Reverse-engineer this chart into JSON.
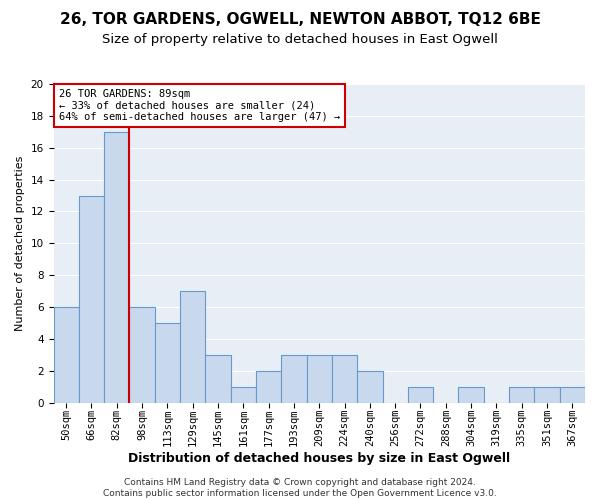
{
  "title": "26, TOR GARDENS, OGWELL, NEWTON ABBOT, TQ12 6BE",
  "subtitle": "Size of property relative to detached houses in East Ogwell",
  "xlabel": "Distribution of detached houses by size in East Ogwell",
  "ylabel": "Number of detached properties",
  "categories": [
    "50sqm",
    "66sqm",
    "82sqm",
    "98sqm",
    "113sqm",
    "129sqm",
    "145sqm",
    "161sqm",
    "177sqm",
    "193sqm",
    "209sqm",
    "224sqm",
    "240sqm",
    "256sqm",
    "272sqm",
    "288sqm",
    "304sqm",
    "319sqm",
    "335sqm",
    "351sqm",
    "367sqm"
  ],
  "values": [
    6,
    13,
    17,
    6,
    5,
    7,
    3,
    1,
    2,
    3,
    3,
    3,
    2,
    0,
    1,
    0,
    1,
    0,
    1,
    1,
    1
  ],
  "bar_color": "#c9d9ed",
  "bar_edge_color": "#6699cc",
  "bar_linewidth": 0.8,
  "red_line_x": 2.5,
  "annotation_line1": "26 TOR GARDENS: 89sqm",
  "annotation_line2": "← 33% of detached houses are smaller (24)",
  "annotation_line3": "64% of semi-detached houses are larger (47) →",
  "annotation_box_color": "#ffffff",
  "annotation_box_edge_color": "#cc0000",
  "ylim": [
    0,
    20
  ],
  "yticks": [
    0,
    2,
    4,
    6,
    8,
    10,
    12,
    14,
    16,
    18,
    20
  ],
  "background_color": "#e8eef5",
  "footer_line1": "Contains HM Land Registry data © Crown copyright and database right 2024.",
  "footer_line2": "Contains public sector information licensed under the Open Government Licence v3.0.",
  "title_fontsize": 11,
  "subtitle_fontsize": 9.5,
  "xlabel_fontsize": 9,
  "ylabel_fontsize": 8,
  "tick_fontsize": 7.5,
  "annotation_fontsize": 7.5,
  "footer_fontsize": 6.5
}
